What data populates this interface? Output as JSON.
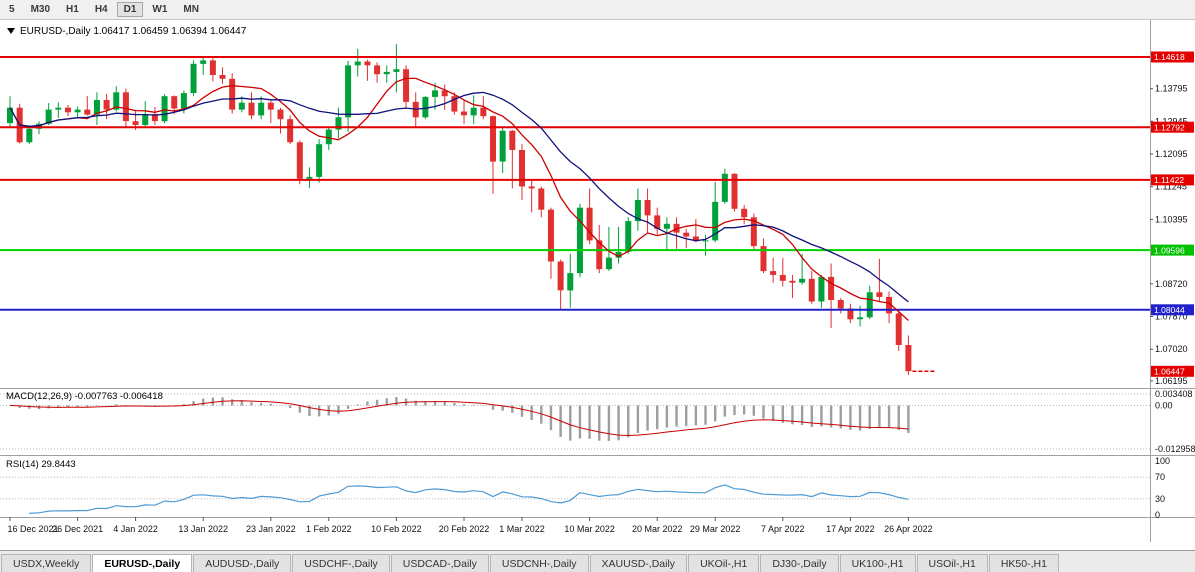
{
  "toolbar": {
    "timeframes": [
      "5",
      "M30",
      "H1",
      "H4",
      "D1",
      "W1",
      "MN"
    ],
    "selected": "D1"
  },
  "tabs": [
    {
      "label": "USDX,Weekly",
      "active": false
    },
    {
      "label": "EURUSD-,Daily",
      "active": true
    },
    {
      "label": "AUDUSD-,Daily",
      "active": false
    },
    {
      "label": "USDCHF-,Daily",
      "active": false
    },
    {
      "label": "USDCAD-,Daily",
      "active": false
    },
    {
      "label": "USDCNH-,Daily",
      "active": false
    },
    {
      "label": "XAUUSD-,Daily",
      "active": false
    },
    {
      "label": "UKOil-,H1",
      "active": false
    },
    {
      "label": "DJ30-,Daily",
      "active": false
    },
    {
      "label": "UK100-,H1",
      "active": false
    },
    {
      "label": "USOil-,H1",
      "active": false
    },
    {
      "label": "HK50-,H1",
      "active": false
    }
  ],
  "chart_data": {
    "type": "candlestick",
    "symbol": "EURUSD-",
    "timeframe": "Daily",
    "title": "EURUSD-,Daily",
    "current_ohlc": {
      "open": "1.06417",
      "high": "1.06459",
      "low": "1.06394",
      "close": "1.06447"
    },
    "current_price": 1.06447,
    "colors": {
      "up": "#00a13a",
      "down": "#e03030",
      "ma_fast": "#cc0000",
      "ma_slow": "#10127e",
      "macd_hist": "#9e9e9e",
      "macd_signal": "#cc0000",
      "rsi": "#4f9bd5"
    },
    "hlines": [
      {
        "price": 1.14618,
        "color": "#e40000"
      },
      {
        "price": 1.12792,
        "color": "#e40000"
      },
      {
        "price": 1.11422,
        "color": "#e40000"
      },
      {
        "price": 1.09596,
        "color": "#00d200"
      },
      {
        "price": 1.08044,
        "color": "#2020cc"
      }
    ],
    "price_badges": [
      {
        "price": 1.14618,
        "color": "#e40000"
      },
      {
        "price": 1.12792,
        "color": "#e40000"
      },
      {
        "price": 1.11422,
        "color": "#e40000"
      },
      {
        "price": 1.09596,
        "color": "#00c000"
      },
      {
        "price": 1.08044,
        "color": "#2020cc"
      },
      {
        "price": 1.06447,
        "color": "#e40000"
      }
    ],
    "price_ticks": [
      1.13795,
      1.12945,
      1.12095,
      1.11245,
      1.10395,
      1.0872,
      1.0787,
      1.0702,
      1.06195
    ],
    "x_labels": [
      {
        "label": "16 Dec 2021",
        "i": 0
      },
      {
        "label": "26 Dec 2021",
        "i": 7
      },
      {
        "label": "4 Jan 2022",
        "i": 13
      },
      {
        "label": "13 Jan 2022",
        "i": 20
      },
      {
        "label": "23 Jan 2022",
        "i": 27
      },
      {
        "label": "1 Feb 2022",
        "i": 33
      },
      {
        "label": "10 Feb 2022",
        "i": 40
      },
      {
        "label": "20 Feb 2022",
        "i": 47
      },
      {
        "label": "1 Mar 2022",
        "i": 53
      },
      {
        "label": "10 Mar 2022",
        "i": 60
      },
      {
        "label": "20 Mar 2022",
        "i": 67
      },
      {
        "label": "29 Mar 2022",
        "i": 73
      },
      {
        "label": "7 Apr 2022",
        "i": 80
      },
      {
        "label": "17 Apr 2022",
        "i": 87
      },
      {
        "label": "26 Apr 2022",
        "i": 93
      }
    ],
    "candles": [
      [
        1.129,
        1.136,
        1.128,
        1.133
      ],
      [
        1.133,
        1.134,
        1.1237,
        1.124
      ],
      [
        1.124,
        1.128,
        1.1235,
        1.1275
      ],
      [
        1.1275,
        1.1295,
        1.1261,
        1.1288
      ],
      [
        1.1288,
        1.1342,
        1.1285,
        1.1325
      ],
      [
        1.1325,
        1.1344,
        1.1303,
        1.133
      ],
      [
        1.133,
        1.1337,
        1.1308,
        1.1318
      ],
      [
        1.1318,
        1.1333,
        1.1304,
        1.1325
      ],
      [
        1.1325,
        1.136,
        1.131,
        1.1312
      ],
      [
        1.1312,
        1.137,
        1.1285,
        1.135
      ],
      [
        1.135,
        1.1366,
        1.13,
        1.1325
      ],
      [
        1.1325,
        1.1386,
        1.132,
        1.137
      ],
      [
        1.137,
        1.138,
        1.128,
        1.1295
      ],
      [
        1.1295,
        1.1323,
        1.1272,
        1.1285
      ],
      [
        1.1285,
        1.1347,
        1.128,
        1.1313
      ],
      [
        1.1313,
        1.1332,
        1.1285,
        1.1295
      ],
      [
        1.1295,
        1.1365,
        1.129,
        1.136
      ],
      [
        1.136,
        1.1362,
        1.1313,
        1.1328
      ],
      [
        1.1328,
        1.1375,
        1.1315,
        1.1368
      ],
      [
        1.1368,
        1.1453,
        1.136,
        1.1444
      ],
      [
        1.1444,
        1.1465,
        1.1415,
        1.1453
      ],
      [
        1.1453,
        1.146,
        1.1398,
        1.1415
      ],
      [
        1.1415,
        1.1435,
        1.1392,
        1.1405
      ],
      [
        1.1405,
        1.142,
        1.1315,
        1.1325
      ],
      [
        1.1325,
        1.136,
        1.1318,
        1.1343
      ],
      [
        1.1343,
        1.137,
        1.13,
        1.131
      ],
      [
        1.131,
        1.136,
        1.13,
        1.1343
      ],
      [
        1.1343,
        1.135,
        1.129,
        1.1325
      ],
      [
        1.1325,
        1.133,
        1.1263,
        1.13
      ],
      [
        1.13,
        1.131,
        1.1235,
        1.124
      ],
      [
        1.124,
        1.1245,
        1.1131,
        1.1145
      ],
      [
        1.1145,
        1.1175,
        1.1121,
        1.115
      ],
      [
        1.115,
        1.1248,
        1.1135,
        1.1235
      ],
      [
        1.1235,
        1.1279,
        1.122,
        1.1273
      ],
      [
        1.1273,
        1.133,
        1.125,
        1.1305
      ],
      [
        1.1305,
        1.1452,
        1.1267,
        1.144
      ],
      [
        1.144,
        1.1483,
        1.1411,
        1.145
      ],
      [
        1.145,
        1.1455,
        1.14,
        1.144
      ],
      [
        1.144,
        1.1448,
        1.1395,
        1.1417
      ],
      [
        1.1417,
        1.144,
        1.1395,
        1.1423
      ],
      [
        1.1423,
        1.1495,
        1.137,
        1.143
      ],
      [
        1.143,
        1.144,
        1.133,
        1.1345
      ],
      [
        1.1345,
        1.137,
        1.1278,
        1.1305
      ],
      [
        1.1305,
        1.136,
        1.13,
        1.1358
      ],
      [
        1.1358,
        1.1395,
        1.1325,
        1.1375
      ],
      [
        1.1375,
        1.139,
        1.1324,
        1.136
      ],
      [
        1.136,
        1.137,
        1.1312,
        1.132
      ],
      [
        1.132,
        1.135,
        1.1288,
        1.131
      ],
      [
        1.131,
        1.1362,
        1.1287,
        1.133
      ],
      [
        1.133,
        1.136,
        1.13,
        1.1308
      ],
      [
        1.1308,
        1.131,
        1.1106,
        1.119
      ],
      [
        1.119,
        1.128,
        1.116,
        1.127
      ],
      [
        1.127,
        1.1272,
        1.112,
        1.122
      ],
      [
        1.122,
        1.1235,
        1.109,
        1.1125
      ],
      [
        1.1125,
        1.114,
        1.1058,
        1.112
      ],
      [
        1.112,
        1.1125,
        1.1045,
        1.1065
      ],
      [
        1.1065,
        1.107,
        1.0885,
        1.093
      ],
      [
        1.093,
        1.0935,
        1.0806,
        1.0855
      ],
      [
        1.0855,
        1.095,
        1.081,
        1.09
      ],
      [
        1.09,
        1.108,
        1.089,
        1.107
      ],
      [
        1.107,
        1.112,
        1.0975,
        1.0985
      ],
      [
        1.0985,
        1.1025,
        1.09,
        1.091
      ],
      [
        1.091,
        1.102,
        1.0905,
        1.094
      ],
      [
        1.094,
        1.102,
        1.0925,
        1.0955
      ],
      [
        1.0955,
        1.1045,
        1.095,
        1.1035
      ],
      [
        1.1035,
        1.112,
        1.101,
        1.109
      ],
      [
        1.109,
        1.112,
        1.1003,
        1.105
      ],
      [
        1.105,
        1.107,
        1.1,
        1.1015
      ],
      [
        1.1015,
        1.1045,
        1.096,
        1.1028
      ],
      [
        1.1028,
        1.1045,
        1.0963,
        1.1005
      ],
      [
        1.1005,
        1.1015,
        1.0965,
        1.0995
      ],
      [
        1.0995,
        1.104,
        1.098,
        1.0983
      ],
      [
        1.0983,
        1.1,
        1.0945,
        1.0985
      ],
      [
        1.0985,
        1.1137,
        1.098,
        1.1085
      ],
      [
        1.1085,
        1.1171,
        1.108,
        1.1158
      ],
      [
        1.1158,
        1.116,
        1.106,
        1.1067
      ],
      [
        1.1067,
        1.1077,
        1.1027,
        1.1045
      ],
      [
        1.1045,
        1.1055,
        1.096,
        1.097
      ],
      [
        1.097,
        1.099,
        1.09,
        1.0905
      ],
      [
        1.0905,
        1.094,
        1.0875,
        1.0895
      ],
      [
        1.0895,
        1.094,
        1.0865,
        1.088
      ],
      [
        1.088,
        1.0895,
        1.0835,
        1.0875
      ],
      [
        1.0875,
        1.095,
        1.087,
        1.0885
      ],
      [
        1.0885,
        1.0905,
        1.082,
        1.0826
      ],
      [
        1.0826,
        1.0895,
        1.081,
        1.089
      ],
      [
        1.089,
        1.0925,
        1.0757,
        1.083
      ],
      [
        1.083,
        1.0835,
        1.0795,
        1.0808
      ],
      [
        1.0808,
        1.082,
        1.077,
        1.078
      ],
      [
        1.078,
        1.0815,
        1.0761,
        1.0785
      ],
      [
        1.0785,
        1.0867,
        1.078,
        1.085
      ],
      [
        1.085,
        1.0937,
        1.0824,
        1.0838
      ],
      [
        1.0838,
        1.0852,
        1.077,
        1.0795
      ],
      [
        1.0795,
        1.08,
        1.0697,
        1.0713
      ],
      [
        1.0713,
        1.0738,
        1.0635,
        1.0645
      ]
    ],
    "ma": [
      {
        "period": 8,
        "color": "#cc0000"
      },
      {
        "period": 16,
        "color": "#10127e"
      }
    ],
    "macd": {
      "label": "MACD(12,26,9) -0.007763 -0.006418",
      "fast": 12,
      "slow": 26,
      "signal_period": 9,
      "axis_labels": [
        "0.003408",
        "0.00",
        "-0.012958"
      ],
      "max": 0.003408,
      "min": -0.012958
    },
    "rsi": {
      "label": "RSI(14) 29.8443",
      "period": 14,
      "axis_labels": [
        "100",
        "70",
        "30",
        "0"
      ],
      "levels": [
        70,
        30
      ]
    }
  }
}
